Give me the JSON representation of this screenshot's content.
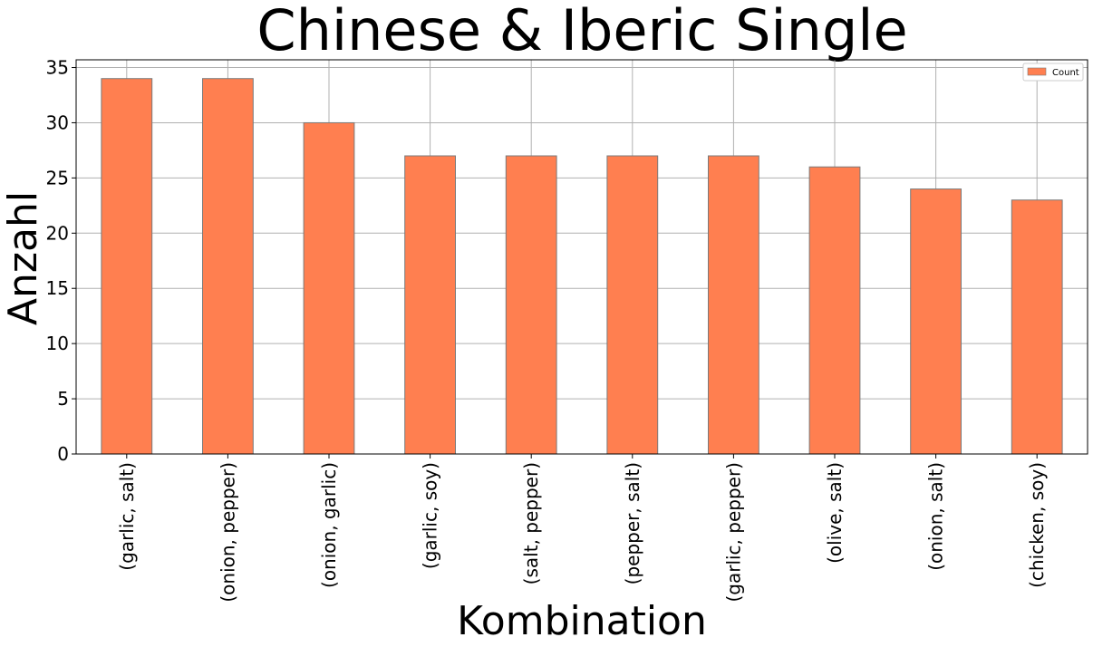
{
  "chart_data": {
    "type": "bar",
    "title": "Chinese & Iberic Single",
    "xlabel": "Kombination",
    "ylabel": "Anzahl",
    "categories": [
      "(garlic, salt)",
      "(onion, pepper)",
      "(onion, garlic)",
      "(garlic, soy)",
      "(salt, pepper)",
      "(pepper, salt)",
      "(garlic, pepper)",
      "(olive, salt)",
      "(onion, salt)",
      "(chicken, soy)"
    ],
    "series": [
      {
        "name": "Count",
        "values": [
          34,
          34,
          30,
          27,
          27,
          27,
          27,
          26,
          24,
          23
        ]
      }
    ],
    "ylim": [
      0,
      35.7
    ],
    "yticks": [
      0,
      5,
      10,
      15,
      20,
      25,
      30,
      35
    ],
    "grid": true,
    "legend_position": "top-right",
    "colors": {
      "bar": "#ff7f50",
      "bar_edge": "#7a7a7a",
      "grid": "#b0b0b0",
      "axis": "#000000"
    }
  }
}
